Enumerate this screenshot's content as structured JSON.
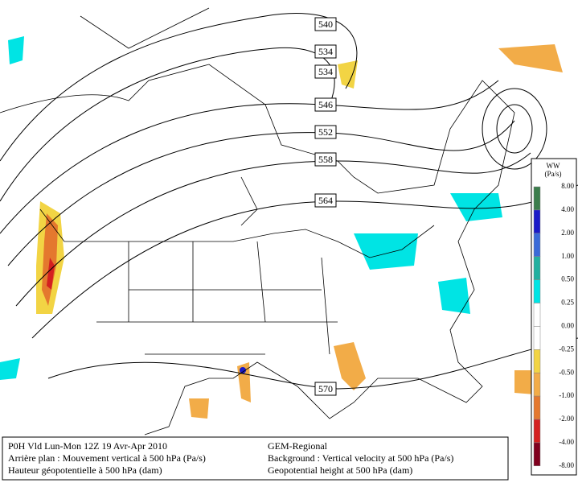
{
  "contour_labels": [
    "540",
    "534",
    "534",
    "546",
    "552",
    "558",
    "564",
    "570"
  ],
  "legend": {
    "title": "WW",
    "unit": "(Pa/s)",
    "ticks": [
      "8.00",
      "4.00",
      "2.00",
      "1.00",
      "0.50",
      "0.25",
      "0.00",
      "-0.25",
      "-0.50",
      "-1.00",
      "-2.00",
      "-4.00",
      "-8.00"
    ],
    "colors": [
      "#3b7d4c",
      "#1a1ac8",
      "#3a6ad8",
      "#22b0a0",
      "#00e4e4",
      "#ffffff",
      "#ffffff",
      "#f2d444",
      "#f2ac48",
      "#e4782e",
      "#d42020",
      "#80001e"
    ]
  },
  "caption": {
    "left": [
      "P0H Vld Lun-Mon 12Z 19 Avr-Apr 2010",
      "Arrière plan : Mouvement vertical à 500 hPa (Pa/s)",
      "Hauteur géopotentielle à 500 hPa (dam)"
    ],
    "right": [
      "GEM-Regional",
      "Background : Vertical velocity at 500 hPa (Pa/s)",
      "Geopotential height at 500 hPa (dam)"
    ]
  }
}
